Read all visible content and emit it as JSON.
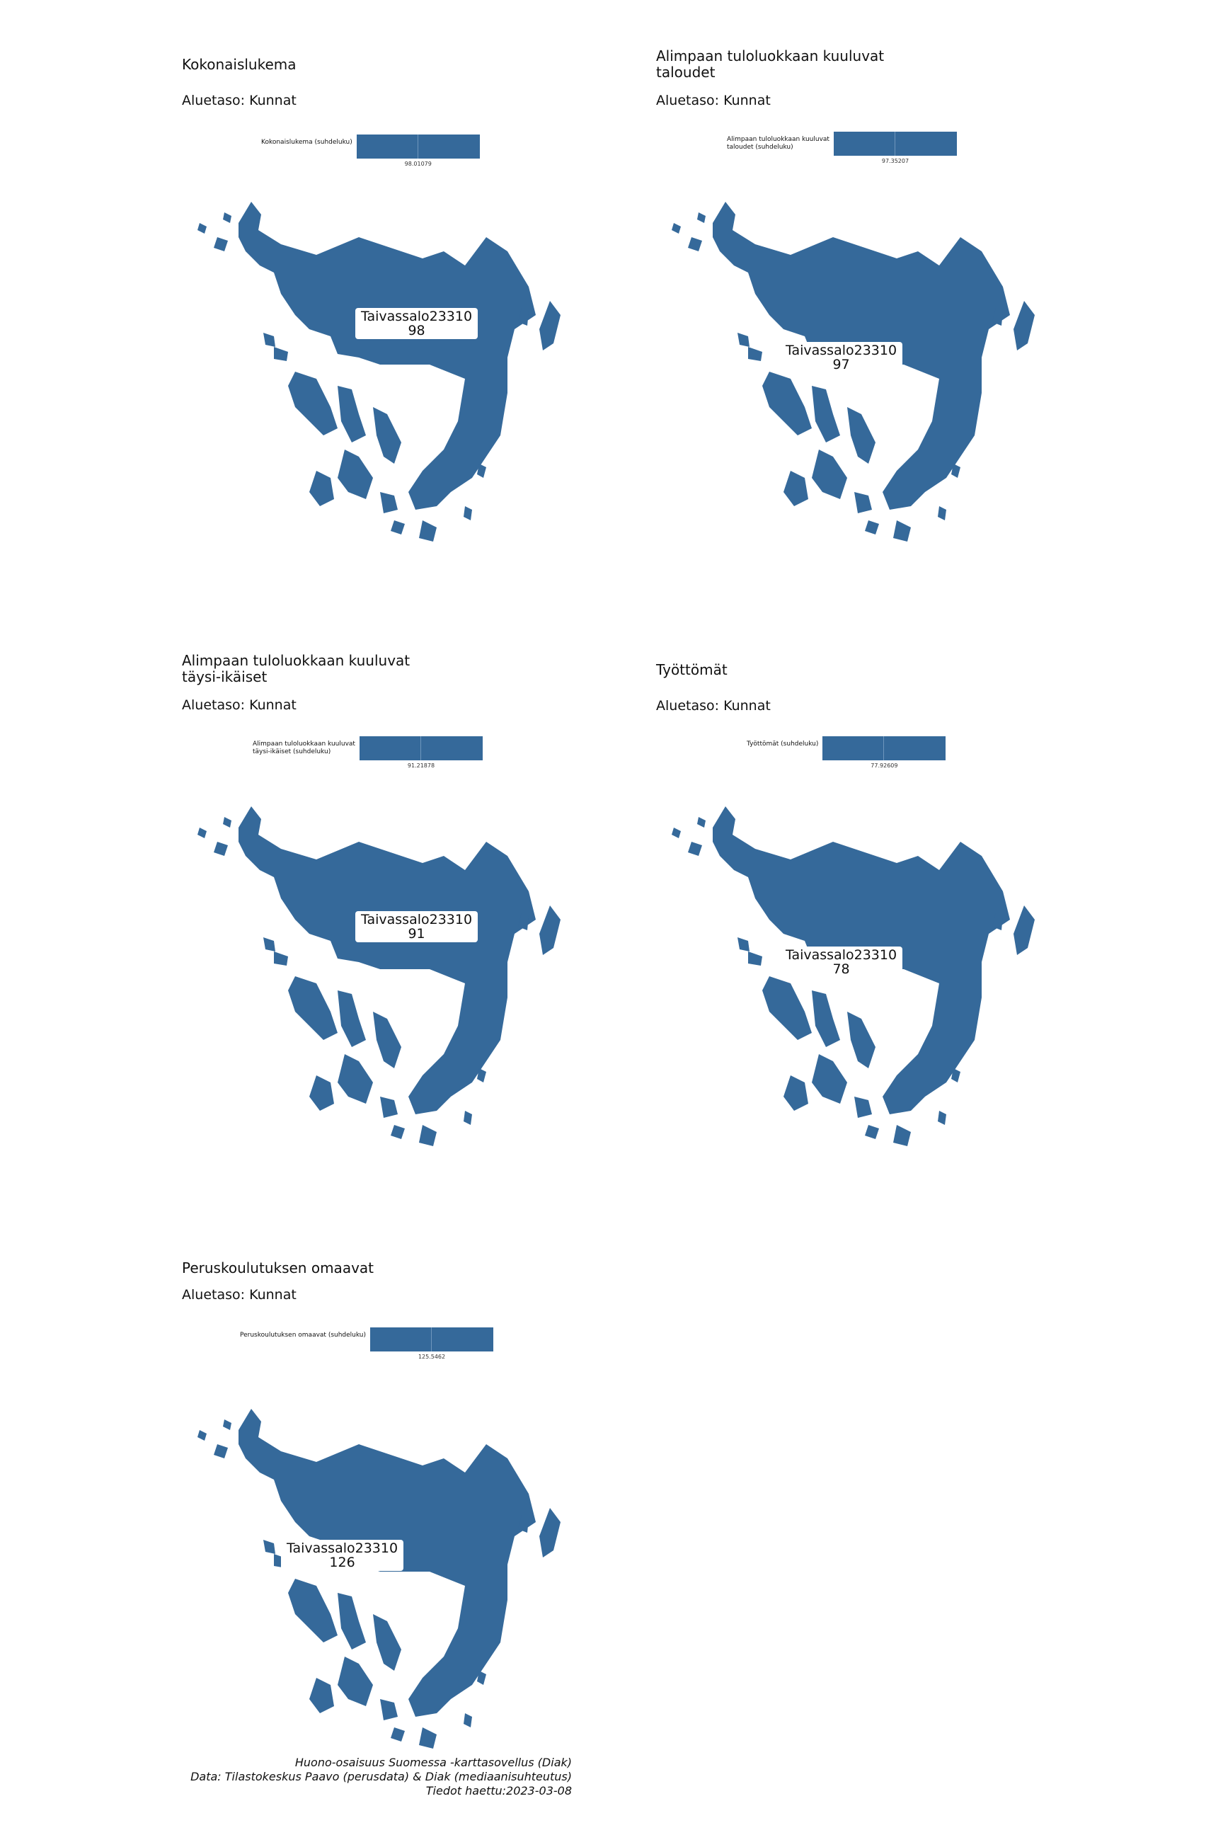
{
  "panels": [
    {
      "title": "Kokonaislukema",
      "subtitle": "Aluetaso: Kunnat",
      "legend_label": "Kokonaislukema (suhdeluku)",
      "legend_value": "98.01079",
      "region": "Taivassalo23310",
      "region_value": "98"
    },
    {
      "title": "Alimpaan tuloluokkaan kuuluvat\ntaloudet",
      "subtitle": "Aluetaso: Kunnat",
      "legend_label": "Alimpaan tuloluokkaan kuuluvat\ntaloudet (suhdeluku)",
      "legend_value": "97.35207",
      "region": "Taivassalo23310",
      "region_value": "97"
    },
    {
      "title": "Alimpaan tuloluokkaan kuuluvat\ntäysi-ikäiset",
      "subtitle": "Aluetaso: Kunnat",
      "legend_label": "Alimpaan tuloluokkaan kuuluvat\ntäysi-ikäiset (suhdeluku)",
      "legend_value": "91.21878",
      "region": "Taivassalo23310",
      "region_value": "91"
    },
    {
      "title": "Työttömät",
      "subtitle": "Aluetaso: Kunnat",
      "legend_label": "Työttömät (suhdeluku)",
      "legend_value": "77.92609",
      "region": "Taivassalo23310",
      "region_value": "78"
    },
    {
      "title": "Peruskoulutuksen omaavat",
      "subtitle": "Aluetaso: Kunnat",
      "legend_label": "Peruskoulutuksen omaavat (suhdeluku)",
      "legend_value": "125.5462",
      "region": "Taivassalo23310",
      "region_value": "126"
    }
  ],
  "credits": {
    "line1": "Huono-osaisuus Suomessa -karttasovellus (Diak)",
    "line2": "Data: Tilastokeskus Paavo (perusdata) & Diak (mediaanisuhteutus)",
    "line3": "Tiedot haettu:2023-03-08"
  },
  "colors": {
    "fill": "#35699a",
    "background": "#ffffff"
  }
}
